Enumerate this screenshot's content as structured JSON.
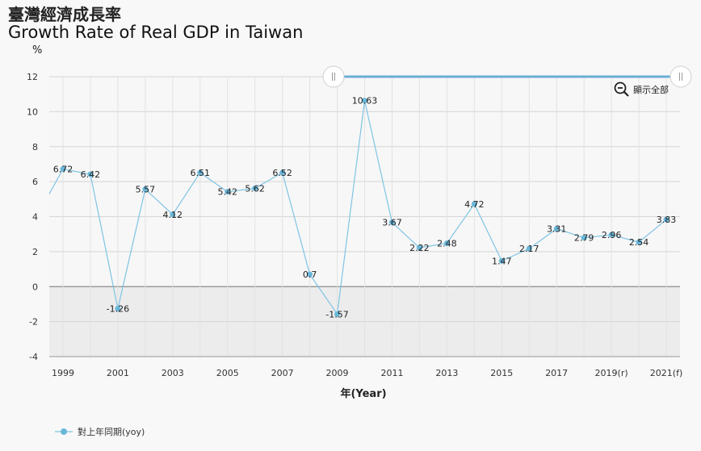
{
  "header": {
    "title_zh": "臺灣經濟成長率",
    "title_en": "Growth Rate of Real GDP in Taiwan",
    "unit": "%"
  },
  "controls": {
    "reset_zoom_label": "顯示全部",
    "reset_zoom_icon": "zoom-out-icon",
    "scroller_handle_icon": "drag-handle-icon"
  },
  "colors": {
    "series": "#7fc4e4",
    "marker": "#6ab7da",
    "negative_band": "#ececec",
    "navigator": "#6aaed6"
  },
  "chart_data": {
    "type": "line",
    "title": "Growth Rate of Real GDP in Taiwan",
    "xlabel": "年(Year)",
    "ylabel": "%",
    "ylim": [
      -4,
      12
    ],
    "yticks": [
      -4,
      -2,
      0,
      2,
      4,
      6,
      8,
      10,
      12
    ],
    "xlim": [
      1998.5,
      2021.5
    ],
    "xticks": [
      {
        "x": 1999,
        "label": "1999"
      },
      {
        "x": 2001,
        "label": "2001"
      },
      {
        "x": 2003,
        "label": "2003"
      },
      {
        "x": 2005,
        "label": "2005"
      },
      {
        "x": 2007,
        "label": "2007"
      },
      {
        "x": 2009,
        "label": "2009"
      },
      {
        "x": 2011,
        "label": "2011"
      },
      {
        "x": 2013,
        "label": "2013"
      },
      {
        "x": 2015,
        "label": "2015"
      },
      {
        "x": 2017,
        "label": "2017"
      },
      {
        "x": 2019,
        "label": "2019(r)"
      },
      {
        "x": 2021,
        "label": "2021(f)"
      }
    ],
    "grid": true,
    "legend_position": "bottom-left",
    "series": [
      {
        "name": "對上年同期(yoy)",
        "leading_value": 5.3,
        "x": [
          1999,
          2000,
          2001,
          2002,
          2003,
          2004,
          2005,
          2006,
          2007,
          2008,
          2009,
          2010,
          2011,
          2012,
          2013,
          2014,
          2015,
          2016,
          2017,
          2018,
          2019,
          2020,
          2021
        ],
        "values": [
          6.72,
          6.42,
          -1.26,
          5.57,
          4.12,
          6.51,
          5.42,
          5.62,
          6.52,
          0.7,
          -1.57,
          10.63,
          3.67,
          2.22,
          2.48,
          4.72,
          1.47,
          2.17,
          3.31,
          2.79,
          2.96,
          2.54,
          3.83
        ],
        "labels": [
          "6.72",
          "6.42",
          "-1.26",
          "5.57",
          "4.12",
          "6.51",
          "5.42",
          "5.62",
          "6.52",
          "0.7",
          "-1.57",
          "10.63",
          "3.67",
          "2.22",
          "2.48",
          "4.72",
          "1.47",
          "2.17",
          "3.31",
          "2.79",
          "2.96",
          "2.54",
          "3.83"
        ]
      }
    ]
  }
}
